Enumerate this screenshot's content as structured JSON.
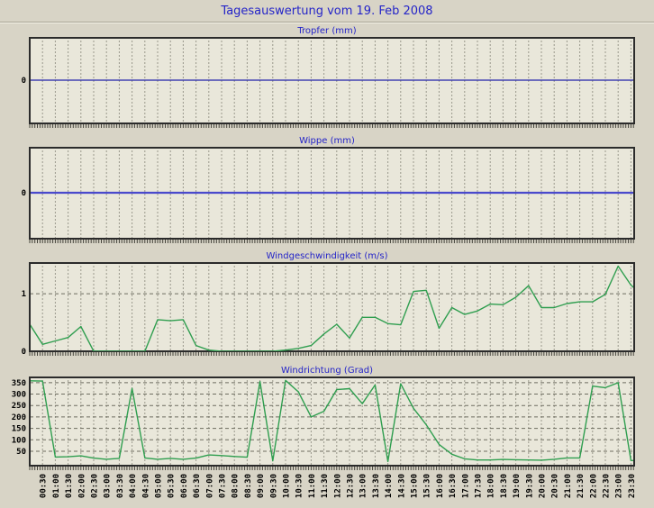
{
  "page_title": "Tagesauswertung vom 19. Feb 2008",
  "colors": {
    "page_bg": "#d8d4c6",
    "plot_bg": "#e9e7da",
    "grid_vertical": "#9a998c",
    "grid_horizontal": "#6e6d60",
    "frame": "#2b2b2b",
    "title_text": "#2424c8",
    "tick_text": "#000000",
    "tropfer_line": "#2222aa",
    "wippe_line": "#4a4acc",
    "wind_line": "#2f9e4f"
  },
  "x_tick_labels": [
    "00:30",
    "01:00",
    "01:30",
    "02:00",
    "02:30",
    "03:00",
    "03:30",
    "04:00",
    "04:30",
    "05:00",
    "05:30",
    "06:00",
    "06:30",
    "07:00",
    "07:30",
    "08:00",
    "08:30",
    "09:00",
    "09:30",
    "10:00",
    "10:30",
    "11:00",
    "11:30",
    "12:00",
    "12:30",
    "13:00",
    "13:30",
    "14:00",
    "14:30",
    "15:00",
    "15:30",
    "16:00",
    "16:30",
    "17:00",
    "17:30",
    "18:00",
    "18:30",
    "19:00",
    "19:30",
    "20:00",
    "20:30",
    "21:00",
    "21:30",
    "22:00",
    "22:30",
    "23:00",
    "23:30"
  ],
  "chart_data": [
    {
      "id": "tropfer",
      "type": "line",
      "title": "Tropfer (mm)",
      "x_start": "00:00",
      "x_interval_minutes": 30,
      "ylim": [
        -1,
        1
      ],
      "y_ticks": [
        {
          "value": 0,
          "label": "0"
        }
      ],
      "h_gridlines": [],
      "line_color": "#2222aa",
      "line_width": 1.3,
      "show_x_labels": false,
      "values": [
        0,
        0,
        0,
        0,
        0,
        0,
        0,
        0,
        0,
        0,
        0,
        0,
        0,
        0,
        0,
        0,
        0,
        0,
        0,
        0,
        0,
        0,
        0,
        0,
        0,
        0,
        0,
        0,
        0,
        0,
        0,
        0,
        0,
        0,
        0,
        0,
        0,
        0,
        0,
        0,
        0,
        0,
        0,
        0,
        0,
        0,
        0,
        0,
        0
      ]
    },
    {
      "id": "wippe",
      "type": "line",
      "title": "Wippe (mm)",
      "x_start": "00:00",
      "x_interval_minutes": 30,
      "ylim": [
        -1,
        1
      ],
      "y_ticks": [
        {
          "value": 0,
          "label": "0"
        }
      ],
      "h_gridlines": [],
      "line_color": "#4a4acc",
      "line_width": 2.2,
      "show_x_labels": false,
      "values": [
        0,
        0,
        0,
        0,
        0,
        0,
        0,
        0,
        0,
        0,
        0,
        0,
        0,
        0,
        0,
        0,
        0,
        0,
        0,
        0,
        0,
        0,
        0,
        0,
        0,
        0,
        0,
        0,
        0,
        0,
        0,
        0,
        0,
        0,
        0,
        0,
        0,
        0,
        0,
        0,
        0,
        0,
        0,
        0,
        0,
        0,
        0,
        0,
        0
      ]
    },
    {
      "id": "windgeschwindigkeit",
      "type": "line",
      "title": "Windgeschwindigkeit (m/s)",
      "x_start": "00:00",
      "x_interval_minutes": 30,
      "ylim": [
        0,
        1.55
      ],
      "y_ticks": [
        {
          "value": 1,
          "label": "1"
        },
        {
          "value": 0,
          "label": "0"
        }
      ],
      "h_gridlines": [
        1
      ],
      "line_color": "#2f9e4f",
      "line_width": 1.4,
      "show_x_labels": false,
      "values": [
        0.47,
        0.12,
        0.18,
        0.24,
        0.43,
        0,
        0,
        0,
        0,
        0,
        0.55,
        0.53,
        0.55,
        0.1,
        0.02,
        0,
        0,
        0,
        0,
        0,
        0.02,
        0.05,
        0.1,
        0.3,
        0.47,
        0.23,
        0.59,
        0.59,
        0.48,
        0.46,
        1.04,
        1.06,
        0.4,
        0.76,
        0.64,
        0.7,
        0.82,
        0.81,
        0.94,
        1.14,
        0.76,
        0.76,
        0.83,
        0.86,
        0.86,
        0.99,
        1.48,
        1.15,
        0.95
      ]
    },
    {
      "id": "windrichtung",
      "type": "line",
      "title": "Windrichtung (Grad)",
      "x_start": "00:00",
      "x_interval_minutes": 30,
      "ylim": [
        -13,
        377
      ],
      "y_ticks": [
        {
          "value": 350,
          "label": "350"
        },
        {
          "value": 300,
          "label": "300"
        },
        {
          "value": 250,
          "label": "250"
        },
        {
          "value": 200,
          "label": "200"
        },
        {
          "value": 150,
          "label": "150"
        },
        {
          "value": 100,
          "label": "100"
        },
        {
          "value": 50,
          "label": "50"
        }
      ],
      "h_gridlines": [
        50,
        100,
        150,
        200,
        250,
        300,
        350
      ],
      "line_color": "#2f9e4f",
      "line_width": 1.4,
      "show_x_labels": true,
      "values": [
        358,
        357,
        25,
        26,
        30,
        20,
        15,
        19,
        325,
        21,
        15,
        19,
        15,
        20,
        34,
        31,
        27,
        24,
        355,
        8,
        360,
        310,
        200,
        225,
        320,
        324,
        258,
        340,
        5,
        345,
        238,
        166,
        80,
        37,
        17,
        12,
        12,
        14,
        13,
        12,
        11,
        15,
        21,
        21,
        335,
        328,
        350,
        10,
        8
      ]
    }
  ]
}
